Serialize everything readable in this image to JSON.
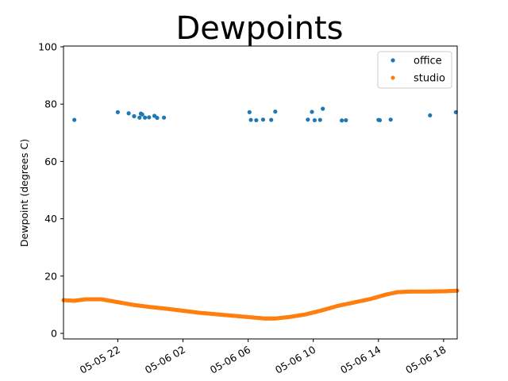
{
  "chart_data": {
    "type": "scatter",
    "title": "Dewpoints",
    "xlabel": "",
    "ylabel": "Dewpoint (degrees C)",
    "ylim": [
      0,
      100
    ],
    "yticks": [
      0,
      20,
      40,
      60,
      80,
      100
    ],
    "xlim": [
      "2025-05-05 18:40",
      "2025-05-06 18:50"
    ],
    "xticks": [
      {
        "value": "2025-05-05 22:00",
        "label": "05-05 22"
      },
      {
        "value": "2025-05-06 02:00",
        "label": "05-06 02"
      },
      {
        "value": "2025-05-06 06:00",
        "label": "05-06 06"
      },
      {
        "value": "2025-05-06 10:00",
        "label": "05-06 10"
      },
      {
        "value": "2025-05-06 14:00",
        "label": "05-06 14"
      },
      {
        "value": "2025-05-06 18:00",
        "label": "05-06 18"
      }
    ],
    "grid": false,
    "legend_position": "top-right",
    "series": [
      {
        "name": "office",
        "color": "#1f77b4",
        "points": [
          {
            "x": "2025-05-05 19:20",
            "y": 74.5
          },
          {
            "x": "2025-05-05 22:00",
            "y": 77.2
          },
          {
            "x": "2025-05-05 22:40",
            "y": 76.8
          },
          {
            "x": "2025-05-05 23:00",
            "y": 75.8
          },
          {
            "x": "2025-05-05 23:20",
            "y": 75.3
          },
          {
            "x": "2025-05-05 23:25",
            "y": 76.7
          },
          {
            "x": "2025-05-05 23:30",
            "y": 76.4
          },
          {
            "x": "2025-05-05 23:40",
            "y": 75.3
          },
          {
            "x": "2025-05-05 23:55",
            "y": 75.4
          },
          {
            "x": "2025-05-06 00:15",
            "y": 75.9
          },
          {
            "x": "2025-05-06 00:25",
            "y": 75.2
          },
          {
            "x": "2025-05-06 00:50",
            "y": 75.3
          },
          {
            "x": "2025-05-06 06:05",
            "y": 77.2
          },
          {
            "x": "2025-05-06 06:10",
            "y": 74.5
          },
          {
            "x": "2025-05-06 06:30",
            "y": 74.4
          },
          {
            "x": "2025-05-06 06:55",
            "y": 74.6
          },
          {
            "x": "2025-05-06 07:25",
            "y": 74.5
          },
          {
            "x": "2025-05-06 07:40",
            "y": 77.4
          },
          {
            "x": "2025-05-06 09:40",
            "y": 74.6
          },
          {
            "x": "2025-05-06 09:55",
            "y": 77.3
          },
          {
            "x": "2025-05-06 10:05",
            "y": 74.4
          },
          {
            "x": "2025-05-06 10:25",
            "y": 74.5
          },
          {
            "x": "2025-05-06 10:35",
            "y": 78.4
          },
          {
            "x": "2025-05-06 11:45",
            "y": 74.3
          },
          {
            "x": "2025-05-06 12:00",
            "y": 74.4
          },
          {
            "x": "2025-05-06 14:00",
            "y": 74.5
          },
          {
            "x": "2025-05-06 14:05",
            "y": 74.4
          },
          {
            "x": "2025-05-06 14:45",
            "y": 74.6
          },
          {
            "x": "2025-05-06 17:10",
            "y": 76.1
          },
          {
            "x": "2025-05-06 18:45",
            "y": 77.2
          }
        ]
      },
      {
        "name": "studio",
        "color": "#ff7f0e",
        "curve": [
          {
            "x": "2025-05-05 18:40",
            "y": 11.6
          },
          {
            "x": "2025-05-05 19:20",
            "y": 11.4
          },
          {
            "x": "2025-05-05 20:00",
            "y": 11.9
          },
          {
            "x": "2025-05-05 21:00",
            "y": 11.9
          },
          {
            "x": "2025-05-05 22:00",
            "y": 10.9
          },
          {
            "x": "2025-05-05 23:00",
            "y": 9.9
          },
          {
            "x": "2025-05-06 00:00",
            "y": 9.2
          },
          {
            "x": "2025-05-06 01:00",
            "y": 8.6
          },
          {
            "x": "2025-05-06 02:00",
            "y": 7.9
          },
          {
            "x": "2025-05-06 03:00",
            "y": 7.2
          },
          {
            "x": "2025-05-06 04:00",
            "y": 6.7
          },
          {
            "x": "2025-05-06 05:00",
            "y": 6.2
          },
          {
            "x": "2025-05-06 06:00",
            "y": 5.7
          },
          {
            "x": "2025-05-06 07:00",
            "y": 5.2
          },
          {
            "x": "2025-05-06 07:40",
            "y": 5.2
          },
          {
            "x": "2025-05-06 08:30",
            "y": 5.7
          },
          {
            "x": "2025-05-06 09:30",
            "y": 6.6
          },
          {
            "x": "2025-05-06 10:30",
            "y": 8.0
          },
          {
            "x": "2025-05-06 11:30",
            "y": 9.6
          },
          {
            "x": "2025-05-06 12:30",
            "y": 10.8
          },
          {
            "x": "2025-05-06 13:30",
            "y": 12.0
          },
          {
            "x": "2025-05-06 14:30",
            "y": 13.6
          },
          {
            "x": "2025-05-06 15:10",
            "y": 14.4
          },
          {
            "x": "2025-05-06 16:00",
            "y": 14.6
          },
          {
            "x": "2025-05-06 17:00",
            "y": 14.6
          },
          {
            "x": "2025-05-06 18:00",
            "y": 14.7
          },
          {
            "x": "2025-05-06 18:50",
            "y": 14.9
          }
        ],
        "sample_interval_minutes": 5
      }
    ]
  }
}
